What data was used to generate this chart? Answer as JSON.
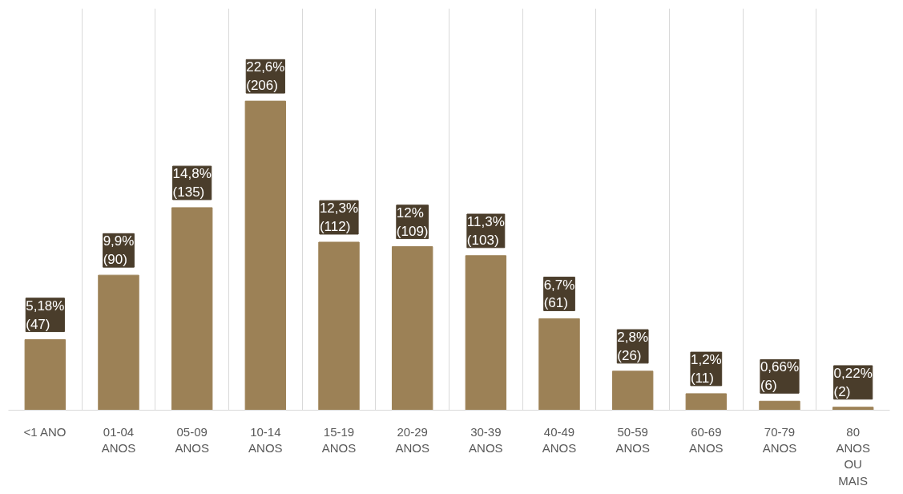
{
  "chart_data": {
    "type": "bar",
    "categories": [
      "<1 ANO",
      "01-04\nANOS",
      "05-09\nANOS",
      "10-14\nANOS",
      "15-19\nANOS",
      "20-29\nANOS",
      "30-39\nANOS",
      "40-49\nANOS",
      "50-59\nANOS",
      "60-69\nANOS",
      "70-79\nANOS",
      "80\nANOS\nOU\nMAIS"
    ],
    "values": [
      47,
      90,
      135,
      206,
      112,
      109,
      103,
      61,
      26,
      11,
      6,
      2
    ],
    "value_labels": [
      "5,18%\n(47)",
      "9,9%\n(90)",
      "14,8%\n(135)",
      "22,6%\n(206)",
      "12,3%\n(112)",
      "12%\n(109)",
      "11,3%\n(103)",
      "6,7%\n(61)",
      "2,8%\n(26)",
      "1,2%\n(11)",
      "0,66%\n(6)",
      "0,22%\n(2)"
    ],
    "color": "#9c8156",
    "grid": "x"
  }
}
